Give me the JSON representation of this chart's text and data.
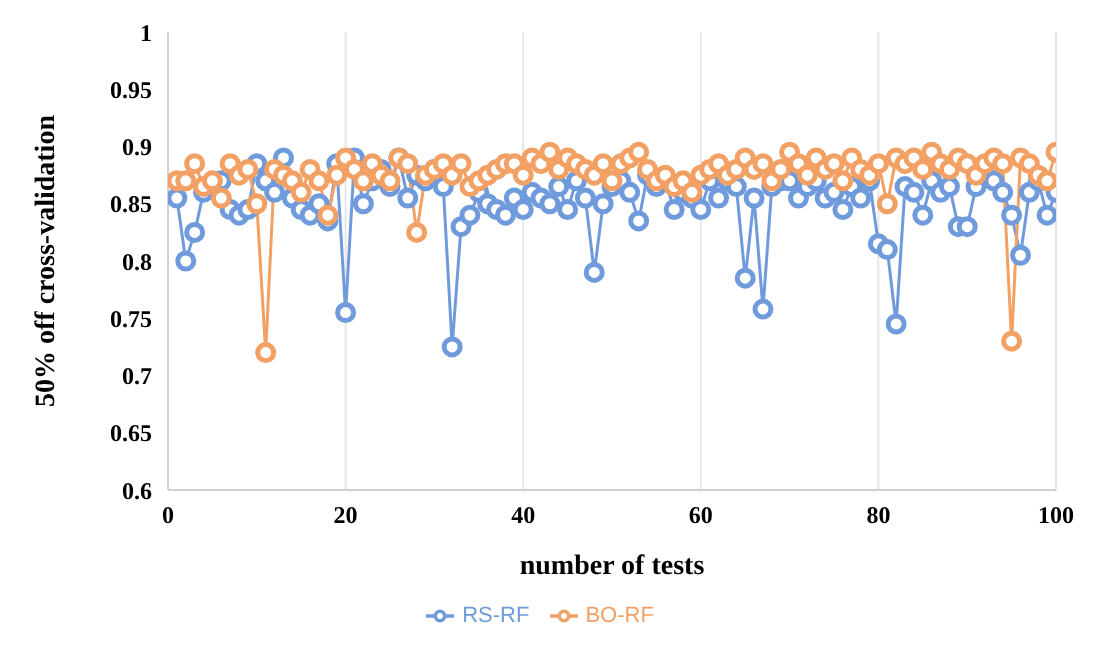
{
  "chart_data": {
    "type": "line",
    "xlabel": "number of tests",
    "ylabel": "50% off cross-validation",
    "x": [
      1,
      2,
      3,
      4,
      5,
      6,
      7,
      8,
      9,
      10,
      11,
      12,
      13,
      14,
      15,
      16,
      17,
      18,
      19,
      20,
      21,
      22,
      23,
      24,
      25,
      26,
      27,
      28,
      29,
      30,
      31,
      32,
      33,
      34,
      35,
      36,
      37,
      38,
      39,
      40,
      41,
      42,
      43,
      44,
      45,
      46,
      47,
      48,
      49,
      50,
      51,
      52,
      53,
      54,
      55,
      56,
      57,
      58,
      59,
      60,
      61,
      62,
      63,
      64,
      65,
      66,
      67,
      68,
      69,
      70,
      71,
      72,
      73,
      74,
      75,
      76,
      77,
      78,
      79,
      80,
      81,
      82,
      83,
      84,
      85,
      86,
      87,
      88,
      89,
      90,
      91,
      92,
      93,
      94,
      95,
      96,
      97,
      98,
      99,
      100
    ],
    "series": [
      {
        "name": "RS-RF",
        "color": "#6f9bdc",
        "values": [
          0.855,
          0.8,
          0.825,
          0.86,
          0.865,
          0.87,
          0.845,
          0.84,
          0.845,
          0.885,
          0.87,
          0.86,
          0.89,
          0.855,
          0.845,
          0.84,
          0.85,
          0.835,
          0.885,
          0.755,
          0.89,
          0.85,
          0.87,
          0.88,
          0.865,
          0.89,
          0.855,
          0.875,
          0.87,
          0.88,
          0.865,
          0.725,
          0.83,
          0.84,
          0.86,
          0.85,
          0.845,
          0.84,
          0.855,
          0.845,
          0.86,
          0.855,
          0.85,
          0.865,
          0.845,
          0.87,
          0.855,
          0.79,
          0.85,
          0.865,
          0.87,
          0.86,
          0.835,
          0.875,
          0.865,
          0.87,
          0.845,
          0.86,
          0.855,
          0.845,
          0.87,
          0.855,
          0.87,
          0.865,
          0.785,
          0.855,
          0.758,
          0.865,
          0.87,
          0.87,
          0.855,
          0.865,
          0.87,
          0.855,
          0.86,
          0.845,
          0.865,
          0.855,
          0.87,
          0.815,
          0.81,
          0.745,
          0.865,
          0.86,
          0.84,
          0.87,
          0.86,
          0.865,
          0.83,
          0.83,
          0.865,
          0.875,
          0.87,
          0.86,
          0.84,
          0.805,
          0.86,
          0.87,
          0.84,
          0.86
        ]
      },
      {
        "name": "BO-RF",
        "color": "#f2a064",
        "values": [
          0.87,
          0.87,
          0.885,
          0.865,
          0.87,
          0.855,
          0.885,
          0.875,
          0.88,
          0.85,
          0.72,
          0.88,
          0.875,
          0.87,
          0.86,
          0.88,
          0.87,
          0.84,
          0.875,
          0.89,
          0.88,
          0.87,
          0.885,
          0.875,
          0.87,
          0.89,
          0.885,
          0.825,
          0.875,
          0.88,
          0.885,
          0.875,
          0.885,
          0.865,
          0.87,
          0.875,
          0.88,
          0.885,
          0.885,
          0.875,
          0.89,
          0.885,
          0.895,
          0.88,
          0.89,
          0.885,
          0.88,
          0.875,
          0.885,
          0.87,
          0.885,
          0.89,
          0.895,
          0.88,
          0.87,
          0.875,
          0.865,
          0.87,
          0.86,
          0.875,
          0.88,
          0.885,
          0.875,
          0.88,
          0.89,
          0.88,
          0.885,
          0.87,
          0.88,
          0.895,
          0.885,
          0.875,
          0.89,
          0.88,
          0.885,
          0.87,
          0.89,
          0.88,
          0.875,
          0.885,
          0.85,
          0.89,
          0.885,
          0.89,
          0.88,
          0.895,
          0.885,
          0.88,
          0.89,
          0.885,
          0.875,
          0.885,
          0.89,
          0.885,
          0.73,
          0.89,
          0.885,
          0.875,
          0.87,
          0.895
        ]
      }
    ],
    "xlim": [
      0,
      100
    ],
    "xticks": [
      0,
      20,
      40,
      60,
      80,
      100
    ],
    "ylim": [
      0.6,
      1
    ],
    "yticks": [
      0.6,
      0.65,
      0.7,
      0.75,
      0.8,
      0.85,
      0.9,
      0.95,
      1
    ],
    "grid": "x",
    "legend": "bottom",
    "marker": "circle",
    "line_style": "solid"
  }
}
